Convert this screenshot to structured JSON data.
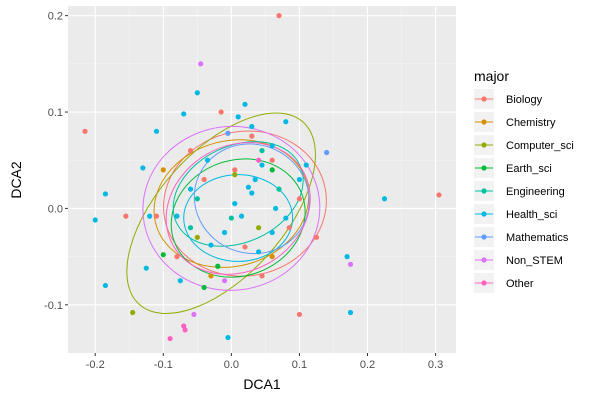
{
  "chart_data": {
    "type": "scatter",
    "xlabel": "DCA1",
    "ylabel": "DCA2",
    "xlim": [
      -0.24,
      0.33
    ],
    "ylim": [
      -0.15,
      0.21
    ],
    "x_ticks": [
      -0.2,
      -0.1,
      0.0,
      0.1,
      0.2,
      0.3
    ],
    "x_tick_labels": [
      "-0.2",
      "-0.1",
      "0.0",
      "0.1",
      "0.2",
      "0.3"
    ],
    "y_ticks": [
      -0.1,
      0.0,
      0.1,
      0.2
    ],
    "y_tick_labels": [
      "-0.1",
      "0.0",
      "0.1",
      "0.2"
    ],
    "grid": true,
    "panel_background": "#ebebeb",
    "legend": {
      "title": "major",
      "placement": "right",
      "entries": [
        {
          "name": "Biology",
          "color": "#F8766D"
        },
        {
          "name": "Chemistry",
          "color": "#D39200"
        },
        {
          "name": "Computer_sci",
          "color": "#93AA00"
        },
        {
          "name": "Earth_sci",
          "color": "#00BA38"
        },
        {
          "name": "Engineering",
          "color": "#00C19F"
        },
        {
          "name": "Health_sci",
          "color": "#00B9E3"
        },
        {
          "name": "Mathematics",
          "color": "#619CFF"
        },
        {
          "name": "Non_STEM",
          "color": "#DB72FB"
        },
        {
          "name": "Other",
          "color": "#FF61C3"
        }
      ]
    },
    "points": [
      {
        "x": 0.07,
        "y": 0.2,
        "group": "Biology"
      },
      {
        "x": -0.215,
        "y": 0.08,
        "group": "Biology"
      },
      {
        "x": 0.305,
        "y": 0.014,
        "group": "Biology"
      },
      {
        "x": -0.155,
        "y": -0.008,
        "group": "Biology"
      },
      {
        "x": 0.1,
        "y": -0.11,
        "group": "Biology"
      },
      {
        "x": -0.11,
        "y": -0.008,
        "group": "Biology"
      },
      {
        "x": 0.03,
        "y": 0.075,
        "group": "Biology"
      },
      {
        "x": 0.125,
        "y": -0.03,
        "group": "Biology"
      },
      {
        "x": 0.06,
        "y": 0.05,
        "group": "Biology"
      },
      {
        "x": -0.04,
        "y": 0.03,
        "group": "Biology"
      },
      {
        "x": 0.02,
        "y": -0.04,
        "group": "Biology"
      },
      {
        "x": -0.015,
        "y": 0.1,
        "group": "Biology"
      },
      {
        "x": 0.085,
        "y": -0.02,
        "group": "Biology"
      },
      {
        "x": -0.08,
        "y": -0.05,
        "group": "Biology"
      },
      {
        "x": 0.005,
        "y": 0.04,
        "group": "Biology"
      },
      {
        "x": 0.045,
        "y": -0.07,
        "group": "Biology"
      },
      {
        "x": -0.06,
        "y": 0.06,
        "group": "Biology"
      },
      {
        "x": 0.1,
        "y": 0.01,
        "group": "Biology"
      },
      {
        "x": -0.1,
        "y": 0.04,
        "group": "Chemistry"
      },
      {
        "x": 0.06,
        "y": -0.05,
        "group": "Chemistry"
      },
      {
        "x": -0.03,
        "y": -0.07,
        "group": "Chemistry"
      },
      {
        "x": -0.145,
        "y": -0.108,
        "group": "Computer_sci"
      },
      {
        "x": 0.005,
        "y": 0.035,
        "group": "Computer_sci"
      },
      {
        "x": 0.04,
        "y": -0.02,
        "group": "Computer_sci"
      },
      {
        "x": -0.05,
        "y": -0.03,
        "group": "Computer_sci"
      },
      {
        "x": -0.04,
        "y": -0.082,
        "group": "Earth_sci"
      },
      {
        "x": -0.1,
        "y": -0.048,
        "group": "Earth_sci"
      },
      {
        "x": 0.06,
        "y": 0.04,
        "group": "Earth_sci"
      },
      {
        "x": -0.02,
        "y": -0.06,
        "group": "Earth_sci"
      },
      {
        "x": 0.07,
        "y": 0.02,
        "group": "Engineering"
      },
      {
        "x": -0.05,
        "y": 0.01,
        "group": "Engineering"
      },
      {
        "x": 0.0,
        "y": -0.01,
        "group": "Engineering"
      },
      {
        "x": 0.045,
        "y": 0.06,
        "group": "Engineering"
      },
      {
        "x": -0.06,
        "y": -0.02,
        "group": "Engineering"
      },
      {
        "x": 0.02,
        "y": 0.108,
        "group": "Health_sci"
      },
      {
        "x": 0.1,
        "y": 0.03,
        "group": "Health_sci"
      },
      {
        "x": 0.11,
        "y": 0.045,
        "group": "Health_sci"
      },
      {
        "x": 0.225,
        "y": 0.01,
        "group": "Health_sci"
      },
      {
        "x": 0.175,
        "y": -0.108,
        "group": "Health_sci"
      },
      {
        "x": -0.2,
        "y": -0.012,
        "group": "Health_sci"
      },
      {
        "x": -0.185,
        "y": -0.08,
        "group": "Health_sci"
      },
      {
        "x": -0.185,
        "y": 0.015,
        "group": "Health_sci"
      },
      {
        "x": -0.13,
        "y": 0.042,
        "group": "Health_sci"
      },
      {
        "x": -0.11,
        "y": 0.08,
        "group": "Health_sci"
      },
      {
        "x": -0.07,
        "y": 0.098,
        "group": "Health_sci"
      },
      {
        "x": -0.05,
        "y": 0.12,
        "group": "Health_sci"
      },
      {
        "x": 0.01,
        "y": 0.095,
        "group": "Health_sci"
      },
      {
        "x": 0.03,
        "y": 0.085,
        "group": "Health_sci"
      },
      {
        "x": -0.035,
        "y": 0.05,
        "group": "Health_sci"
      },
      {
        "x": 0.08,
        "y": 0.09,
        "group": "Health_sci"
      },
      {
        "x": 0.06,
        "y": 0.065,
        "group": "Health_sci"
      },
      {
        "x": 0.035,
        "y": 0.03,
        "group": "Health_sci"
      },
      {
        "x": 0.025,
        "y": 0.022,
        "group": "Health_sci"
      },
      {
        "x": 0.03,
        "y": 0.016,
        "group": "Health_sci"
      },
      {
        "x": 0.005,
        "y": 0.005,
        "group": "Health_sci"
      },
      {
        "x": 0.015,
        "y": -0.008,
        "group": "Health_sci"
      },
      {
        "x": -0.06,
        "y": 0.02,
        "group": "Health_sci"
      },
      {
        "x": -0.08,
        "y": -0.008,
        "group": "Health_sci"
      },
      {
        "x": -0.12,
        "y": -0.008,
        "group": "Health_sci"
      },
      {
        "x": -0.125,
        "y": -0.062,
        "group": "Health_sci"
      },
      {
        "x": -0.075,
        "y": -0.075,
        "group": "Health_sci"
      },
      {
        "x": -0.03,
        "y": -0.038,
        "group": "Health_sci"
      },
      {
        "x": -0.01,
        "y": -0.025,
        "group": "Health_sci"
      },
      {
        "x": 0.04,
        "y": -0.045,
        "group": "Health_sci"
      },
      {
        "x": 0.06,
        "y": -0.025,
        "group": "Health_sci"
      },
      {
        "x": 0.08,
        "y": -0.01,
        "group": "Health_sci"
      },
      {
        "x": 0.17,
        "y": -0.05,
        "group": "Health_sci"
      },
      {
        "x": -0.005,
        "y": -0.134,
        "group": "Health_sci"
      },
      {
        "x": 0.065,
        "y": 0.0,
        "group": "Health_sci"
      },
      {
        "x": 0.045,
        "y": 0.045,
        "group": "Health_sci"
      },
      {
        "x": 0.14,
        "y": 0.058,
        "group": "Mathematics"
      },
      {
        "x": -0.005,
        "y": 0.078,
        "group": "Mathematics"
      },
      {
        "x": -0.045,
        "y": 0.15,
        "group": "Non_STEM"
      },
      {
        "x": 0.175,
        "y": -0.058,
        "group": "Non_STEM"
      },
      {
        "x": -0.055,
        "y": -0.11,
        "group": "Non_STEM"
      },
      {
        "x": -0.01,
        "y": -0.075,
        "group": "Non_STEM"
      },
      {
        "x": -0.07,
        "y": -0.122,
        "group": "Other"
      },
      {
        "x": -0.068,
        "y": -0.126,
        "group": "Other"
      },
      {
        "x": -0.09,
        "y": -0.135,
        "group": "Other"
      },
      {
        "x": 0.04,
        "y": 0.05,
        "group": "Other"
      }
    ],
    "ellipses": [
      {
        "group": "Biology",
        "cx": 0.02,
        "cy": 0.005,
        "rx": 0.12,
        "ry": 0.075,
        "angle_deg": 10
      },
      {
        "group": "Chemistry",
        "cx": 0.0,
        "cy": 0.005,
        "rx": 0.115,
        "ry": 0.065,
        "angle_deg": 15
      },
      {
        "group": "Computer_sci",
        "cx": -0.015,
        "cy": -0.005,
        "rx": 0.18,
        "ry": 0.065,
        "angle_deg": 48
      },
      {
        "group": "Earth_sci",
        "cx": 0.01,
        "cy": -0.01,
        "rx": 0.1,
        "ry": 0.06,
        "angle_deg": 20
      },
      {
        "group": "Engineering",
        "cx": 0.01,
        "cy": 0.015,
        "rx": 0.1,
        "ry": 0.05,
        "angle_deg": 25
      },
      {
        "group": "Health_sci",
        "cx": 0.01,
        "cy": -0.01,
        "rx": 0.08,
        "ry": 0.045,
        "angle_deg": 0
      },
      {
        "group": "Mathematics",
        "cx": 0.03,
        "cy": 0.01,
        "rx": 0.08,
        "ry": 0.06,
        "angle_deg": 70
      },
      {
        "group": "Non_STEM",
        "cx": 0.0,
        "cy": 0.0,
        "rx": 0.13,
        "ry": 0.085,
        "angle_deg": 5
      },
      {
        "group": "Other",
        "cx": 0.01,
        "cy": 0.0,
        "rx": 0.11,
        "ry": 0.065,
        "angle_deg": 30
      }
    ]
  }
}
